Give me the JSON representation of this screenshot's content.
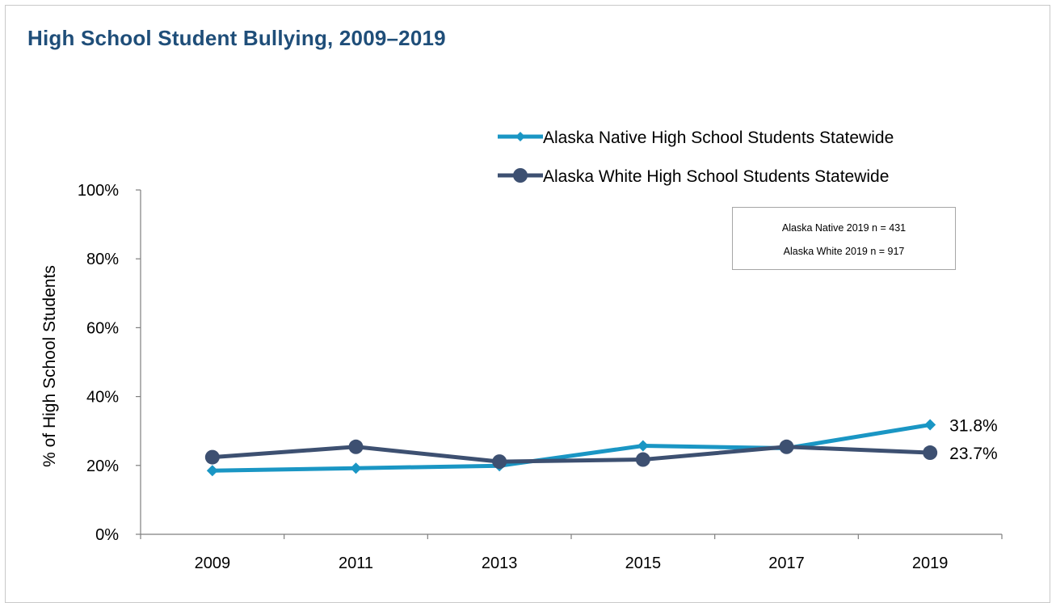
{
  "title": "High School Student Bullying, 2009–2019",
  "note": {
    "line1": "Alaska Native 2019 n = 431",
    "line2": "Alaska White 2019 n = 917"
  },
  "chart_data": {
    "type": "line",
    "title": "High School Student Bullying, 2009–2019",
    "ylabel": "% of High School Students",
    "xlabel": "",
    "categories": [
      "2009",
      "2011",
      "2013",
      "2015",
      "2017",
      "2019"
    ],
    "ylim": [
      0,
      100
    ],
    "yticks": [
      "0%",
      "20%",
      "40%",
      "60%",
      "80%",
      "100%"
    ],
    "legend_position": "top-right",
    "grid": false,
    "series": [
      {
        "name": "Alaska Native High School Students Statewide",
        "color": "#1a96c4",
        "marker": "diamond",
        "values": [
          18.5,
          19.2,
          19.9,
          25.7,
          25.0,
          31.8
        ],
        "end_label": "31.8%"
      },
      {
        "name": "Alaska White High School Students Statewide",
        "color": "#3d5071",
        "marker": "circle",
        "values": [
          22.4,
          25.4,
          21.1,
          21.7,
          25.4,
          23.7
        ],
        "end_label": "23.7%"
      }
    ]
  }
}
